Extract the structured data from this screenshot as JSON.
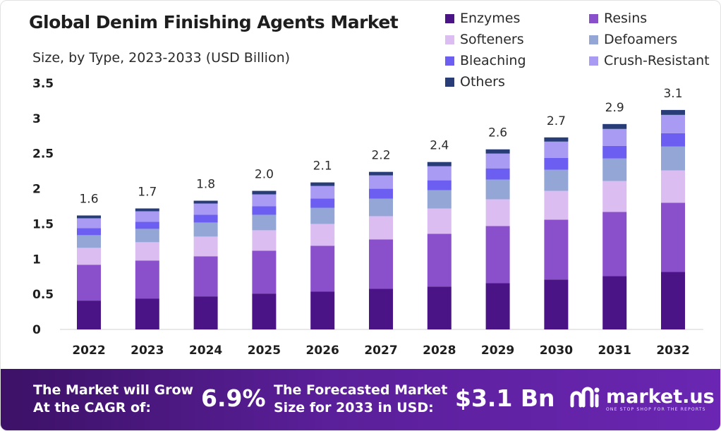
{
  "header": {
    "title": "Global Denim Finishing Agents Market",
    "subtitle": "Size, by Type, 2023-2033 (USD Billion)"
  },
  "colors": {
    "Enzymes": "#4a1486",
    "Resins": "#8a4fcb",
    "Softeners": "#dbbdf1",
    "Defoamers": "#93a6d6",
    "Bleaching": "#6b5ef0",
    "Crush-Resistant": "#a99af3",
    "Others": "#283c78"
  },
  "chart_data": {
    "type": "bar",
    "stacked": true,
    "title": "Global Denim Finishing Agents Market",
    "subtitle": "Size, by Type, 2023-2033 (USD Billion)",
    "categories": [
      "2022",
      "2023",
      "2024",
      "2025",
      "2026",
      "2027",
      "2028",
      "2029",
      "2030",
      "2031",
      "2032"
    ],
    "totals_labels": [
      "1.6",
      "1.7",
      "1.8",
      "2.0",
      "2.1",
      "2.2",
      "2.4",
      "2.6",
      "2.7",
      "2.9",
      "3.1"
    ],
    "yticks": [
      "0",
      "0.5",
      "1",
      "1.5",
      "2",
      "2.5",
      "3",
      "3.5"
    ],
    "ylim": [
      0,
      3.5
    ],
    "grid": false,
    "legend_position": "top-right",
    "series": [
      {
        "name": "Enzymes",
        "values": [
          0.41,
          0.44,
          0.47,
          0.51,
          0.54,
          0.58,
          0.61,
          0.66,
          0.71,
          0.76,
          0.82
        ]
      },
      {
        "name": "Resins",
        "values": [
          0.51,
          0.54,
          0.57,
          0.61,
          0.65,
          0.7,
          0.75,
          0.81,
          0.85,
          0.91,
          0.98
        ]
      },
      {
        "name": "Softeners",
        "values": [
          0.24,
          0.26,
          0.28,
          0.29,
          0.31,
          0.33,
          0.36,
          0.38,
          0.41,
          0.44,
          0.46
        ]
      },
      {
        "name": "Defoamers",
        "values": [
          0.18,
          0.19,
          0.2,
          0.22,
          0.23,
          0.25,
          0.26,
          0.28,
          0.3,
          0.32,
          0.34
        ]
      },
      {
        "name": "Bleaching",
        "values": [
          0.1,
          0.1,
          0.11,
          0.12,
          0.13,
          0.14,
          0.14,
          0.16,
          0.17,
          0.18,
          0.19
        ]
      },
      {
        "name": "Crush-Resistant",
        "values": [
          0.14,
          0.15,
          0.16,
          0.17,
          0.18,
          0.19,
          0.2,
          0.21,
          0.23,
          0.24,
          0.26
        ]
      },
      {
        "name": "Others",
        "values": [
          0.04,
          0.04,
          0.04,
          0.05,
          0.05,
          0.05,
          0.06,
          0.06,
          0.06,
          0.07,
          0.07
        ]
      }
    ]
  },
  "banner": {
    "cagr_text": "The Market will Grow\nAt the CAGR of:",
    "cagr_value": "6.9%",
    "forecast_text": "The Forecasted Market\nSize for 2033 in USD:",
    "forecast_value": "$3.1 Bn",
    "logo_text": "market.us",
    "logo_tagline": "ONE STOP SHOP FOR THE REPORTS"
  }
}
